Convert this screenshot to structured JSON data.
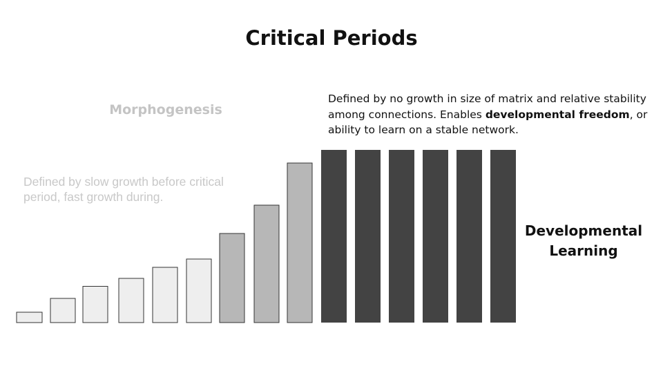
{
  "title": "Critical Periods",
  "morphogenesis": {
    "heading": "Morphogenesis",
    "description": "Defined by slow growth before critical period, fast growth during."
  },
  "developmental": {
    "description_before": "Defined by no growth in size of matrix and relative stability among connections. Enables ",
    "description_bold": "developmental freedom",
    "description_after": ", or ability to learn on a stable network.",
    "heading_line1": "Developmental",
    "heading_line2": "Learning"
  },
  "colors": {
    "pre_critical": "#eeeeee",
    "critical": "#b7b7b7",
    "stable": "#434343",
    "outline": "#333333"
  },
  "bars": [
    {
      "level": 0.06,
      "phase": "pre_critical"
    },
    {
      "level": 0.14,
      "phase": "pre_critical"
    },
    {
      "level": 0.21,
      "phase": "pre_critical"
    },
    {
      "level": 0.256,
      "phase": "pre_critical"
    },
    {
      "level": 0.32,
      "phase": "pre_critical"
    },
    {
      "level": 0.368,
      "phase": "pre_critical"
    },
    {
      "level": 0.516,
      "phase": "critical"
    },
    {
      "level": 0.68,
      "phase": "critical"
    },
    {
      "level": 0.924,
      "phase": "critical"
    },
    {
      "level": 1.0,
      "phase": "stable"
    },
    {
      "level": 1.0,
      "phase": "stable"
    },
    {
      "level": 1.0,
      "phase": "stable"
    },
    {
      "level": 1.0,
      "phase": "stable"
    },
    {
      "level": 1.0,
      "phase": "stable"
    },
    {
      "level": 1.0,
      "phase": "stable"
    }
  ]
}
